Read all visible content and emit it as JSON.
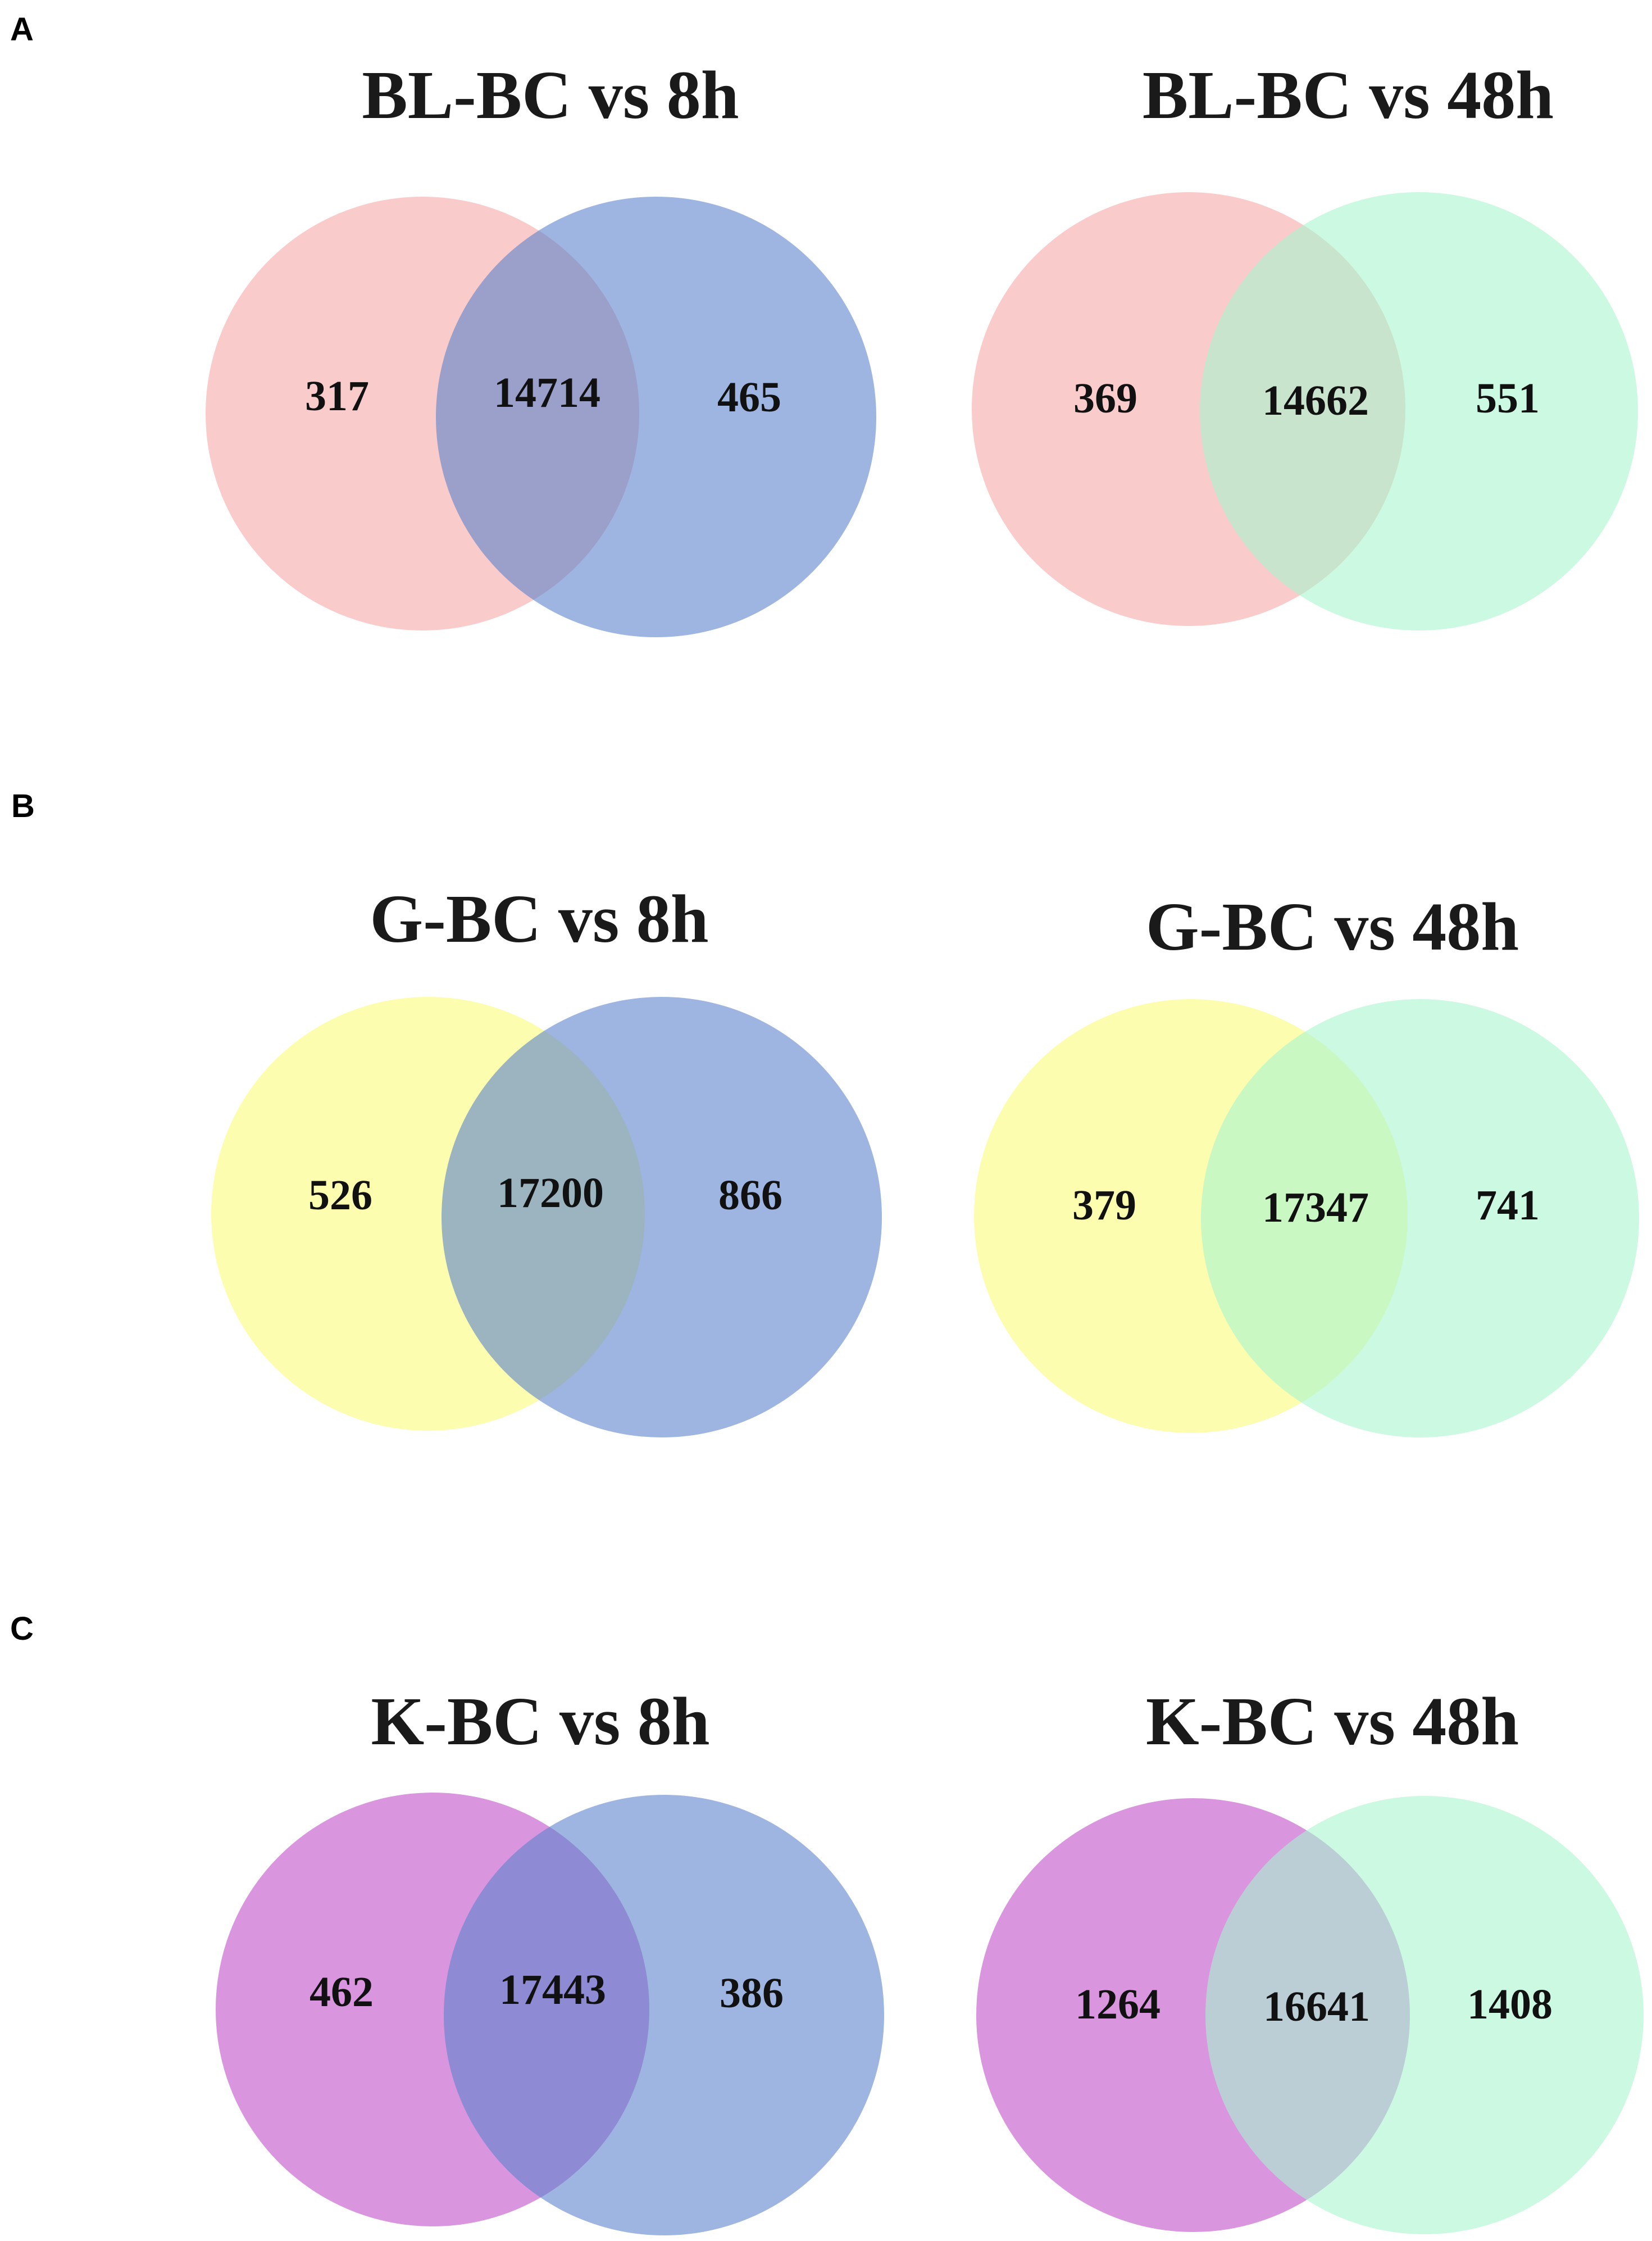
{
  "panels": [
    {
      "label": "A",
      "diagrams": [
        {
          "title": "BL-BC vs 8h",
          "left_color": "#f7a8a8",
          "right_color": "#5b84cb",
          "counts": {
            "left_only": "317",
            "overlap": "14714",
            "right_only": "465"
          }
        },
        {
          "title": "BL-BC vs 48h",
          "left_color": "#f7a8a8",
          "right_color": "#a8f5cf",
          "counts": {
            "left_only": "369",
            "overlap": "14662",
            "right_only": "551"
          }
        }
      ]
    },
    {
      "label": "B",
      "diagrams": [
        {
          "title": "G-BC vs 8h",
          "left_color": "#fbfb7a",
          "right_color": "#5b84cb",
          "counts": {
            "left_only": "526",
            "overlap": "17200",
            "right_only": "866"
          }
        },
        {
          "title": "G-BC vs 48h",
          "left_color": "#fbfb7a",
          "right_color": "#a8f5cf",
          "counts": {
            "left_only": "379",
            "overlap": "17347",
            "right_only": "741"
          }
        }
      ]
    },
    {
      "label": "C",
      "diagrams": [
        {
          "title": "K-BC vs 8h",
          "left_color": "#bf4ec8",
          "right_color": "#5b84cb",
          "counts": {
            "left_only": "462",
            "overlap": "17443",
            "right_only": "386"
          }
        },
        {
          "title": "K-BC vs 48h",
          "left_color": "#bf4ec8",
          "right_color": "#a8f5cf",
          "counts": {
            "left_only": "1264",
            "overlap": "16641",
            "right_only": "1408"
          }
        }
      ]
    }
  ]
}
